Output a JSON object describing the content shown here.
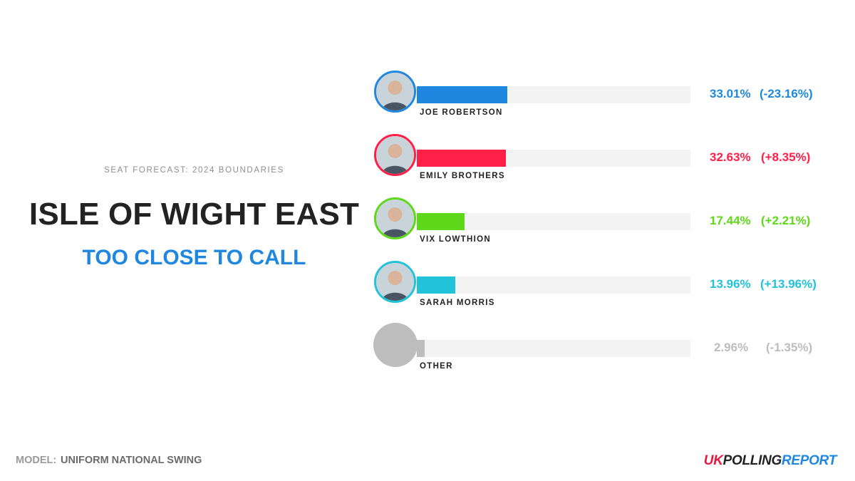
{
  "header": {
    "subtitle": "SEAT FORECAST: 2024 BOUNDARIES",
    "seat_name": "ISLE OF WIGHT EAST",
    "status": "TOO CLOSE TO CALL",
    "status_color": "#1f87e0"
  },
  "chart_data": {
    "type": "bar",
    "orientation": "horizontal",
    "title": "",
    "xlim": [
      0,
      100
    ],
    "grid": false,
    "legend": "none",
    "candidates": [
      {
        "name": "JOE ROBERTSON",
        "value": 33.01,
        "value_label": "33.01%",
        "change": -23.16,
        "change_label": "(-23.16%)",
        "color": "#1f87e0",
        "avatar": "candidate-photo-icon"
      },
      {
        "name": "EMILY BROTHERS",
        "value": 32.63,
        "value_label": "32.63%",
        "change": 8.35,
        "change_label": "(+8.35%)",
        "color": "#ff1f47",
        "avatar": "candidate-photo-icon"
      },
      {
        "name": "VIX LOWTHION",
        "value": 17.44,
        "value_label": "17.44%",
        "change": 2.21,
        "change_label": "(+2.21%)",
        "color": "#5ed91a",
        "avatar": "candidate-photo-icon"
      },
      {
        "name": "SARAH MORRIS",
        "value": 13.96,
        "value_label": "13.96%",
        "change": 13.96,
        "change_label": "(+13.96%)",
        "color": "#22c3d8",
        "avatar": "candidate-photo-icon"
      },
      {
        "name": "OTHER",
        "value": 2.96,
        "value_label": "2.96%",
        "change": -1.35,
        "change_label": "(-1.35%)",
        "color": "#bdbdbd",
        "avatar": "placeholder-circle-icon"
      }
    ]
  },
  "footer": {
    "model_label": "MODEL:",
    "model_value": "UNIFORM NATIONAL SWING",
    "brand_uk": "UK",
    "brand_polling": "POLLING",
    "brand_report": "REPORT"
  }
}
